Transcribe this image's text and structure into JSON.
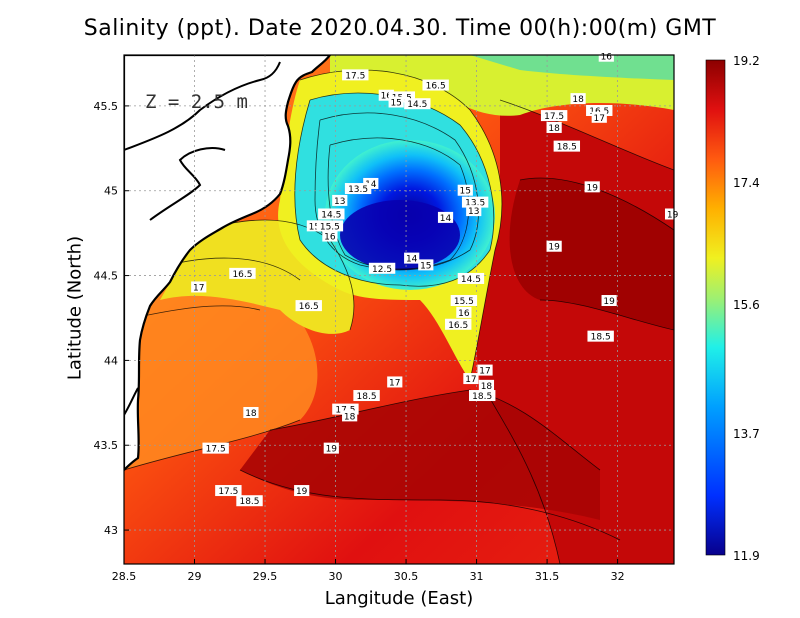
{
  "chart_data": {
    "type": "heatmap",
    "title": "Salinity (ppt). Date 2020.04.30. Time 00(h):00(m) GMT",
    "xlabel": "Langitude (East)",
    "ylabel": "Latitude (North)",
    "xlim": [
      28.5,
      32.4
    ],
    "ylim": [
      42.8,
      45.8
    ],
    "x_ticks": [
      "28.5",
      "29",
      "29.5",
      "30",
      "30.5",
      "31",
      "31.5",
      "32"
    ],
    "y_ticks": [
      "43",
      "43.5",
      "44",
      "44.5",
      "45",
      "45.5"
    ],
    "colorbar": {
      "min": 11.9,
      "max": 19.2,
      "ticks": [
        "19.2",
        "17.4",
        "15.6",
        "13.7",
        "11.9"
      ],
      "colors": [
        "#08008c",
        "#0030ff",
        "#00a0ff",
        "#20f0e8",
        "#a0f070",
        "#f0f020",
        "#ffb000",
        "#ff5a10",
        "#e01010",
        "#8c0000"
      ]
    },
    "depth_annotation": "Z = 2.5 m",
    "contour_labels": [
      {
        "text": "17.5",
        "x": 30.14,
        "y": 45.68
      },
      {
        "text": "16.5",
        "x": 30.71,
        "y": 45.62
      },
      {
        "text": "16",
        "x": 30.36,
        "y": 45.56
      },
      {
        "text": "15.5",
        "x": 30.47,
        "y": 45.55
      },
      {
        "text": "15",
        "x": 30.43,
        "y": 45.52
      },
      {
        "text": "14.5",
        "x": 30.58,
        "y": 45.51
      },
      {
        "text": "14",
        "x": 30.25,
        "y": 45.04
      },
      {
        "text": "13.5",
        "x": 30.16,
        "y": 45.01
      },
      {
        "text": "13",
        "x": 30.03,
        "y": 44.94
      },
      {
        "text": "15",
        "x": 30.92,
        "y": 45.0
      },
      {
        "text": "13.5",
        "x": 30.99,
        "y": 44.93
      },
      {
        "text": "13",
        "x": 30.98,
        "y": 44.88
      },
      {
        "text": "14.5",
        "x": 29.97,
        "y": 44.86
      },
      {
        "text": "15",
        "x": 29.85,
        "y": 44.79
      },
      {
        "text": "15.5",
        "x": 29.96,
        "y": 44.79
      },
      {
        "text": "16",
        "x": 29.96,
        "y": 44.73
      },
      {
        "text": "14",
        "x": 30.78,
        "y": 44.84
      },
      {
        "text": "14",
        "x": 30.54,
        "y": 44.6
      },
      {
        "text": "15",
        "x": 30.64,
        "y": 44.56
      },
      {
        "text": "12.5",
        "x": 30.33,
        "y": 44.54
      },
      {
        "text": "16.5",
        "x": 29.34,
        "y": 44.51
      },
      {
        "text": "17",
        "x": 29.03,
        "y": 44.43
      },
      {
        "text": "14.5",
        "x": 30.96,
        "y": 44.48
      },
      {
        "text": "15.5",
        "x": 30.91,
        "y": 44.35
      },
      {
        "text": "16",
        "x": 30.91,
        "y": 44.28
      },
      {
        "text": "16.5",
        "x": 29.81,
        "y": 44.32
      },
      {
        "text": "16.5",
        "x": 30.87,
        "y": 44.21
      },
      {
        "text": "17",
        "x": 30.42,
        "y": 43.87
      },
      {
        "text": "17",
        "x": 30.96,
        "y": 43.89
      },
      {
        "text": "17",
        "x": 31.06,
        "y": 43.94
      },
      {
        "text": "18",
        "x": 31.07,
        "y": 43.85
      },
      {
        "text": "18.5",
        "x": 30.22,
        "y": 43.79
      },
      {
        "text": "17.5",
        "x": 30.07,
        "y": 43.71
      },
      {
        "text": "18",
        "x": 30.1,
        "y": 43.67
      },
      {
        "text": "18.5",
        "x": 31.04,
        "y": 43.79
      },
      {
        "text": "18",
        "x": 29.4,
        "y": 43.69
      },
      {
        "text": "17.5",
        "x": 29.15,
        "y": 43.48
      },
      {
        "text": "19",
        "x": 29.97,
        "y": 43.48
      },
      {
        "text": "19",
        "x": 29.76,
        "y": 43.23
      },
      {
        "text": "17.5",
        "x": 29.24,
        "y": 43.23
      },
      {
        "text": "18.5",
        "x": 29.39,
        "y": 43.17
      },
      {
        "text": "18",
        "x": 31.72,
        "y": 45.54
      },
      {
        "text": "17.5",
        "x": 31.55,
        "y": 45.44
      },
      {
        "text": "18",
        "x": 31.55,
        "y": 45.37
      },
      {
        "text": "16.5",
        "x": 31.87,
        "y": 45.47
      },
      {
        "text": "17",
        "x": 31.87,
        "y": 45.43
      },
      {
        "text": "18.5",
        "x": 31.64,
        "y": 45.26
      },
      {
        "text": "19",
        "x": 31.82,
        "y": 45.02
      },
      {
        "text": "19",
        "x": 32.39,
        "y": 44.86
      },
      {
        "text": "19",
        "x": 31.55,
        "y": 44.67
      },
      {
        "text": "19",
        "x": 31.94,
        "y": 44.35
      },
      {
        "text": "18.5",
        "x": 31.88,
        "y": 44.14
      },
      {
        "text": "16",
        "x": 31.92,
        "y": 45.79
      }
    ]
  }
}
